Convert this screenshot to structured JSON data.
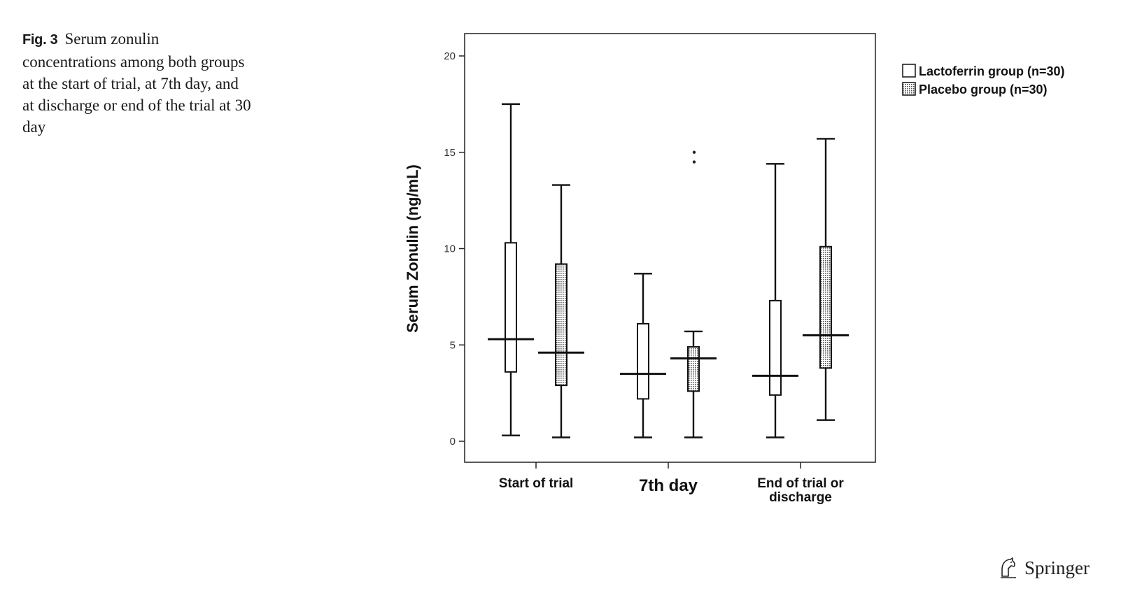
{
  "caption": {
    "label": "Fig. 3",
    "text": "Serum zonulin concentrations among both groups at the start of trial, at 7th day, and at discharge or end of the trial at 30 day"
  },
  "publisher": {
    "name": "Springer",
    "icon": "springer-horse-icon"
  },
  "chart_data": {
    "type": "box",
    "ylabel": "Serum Zonulin (ng/mL)",
    "xlabel": "",
    "ylim": [
      0,
      20
    ],
    "yticks": [
      0,
      5,
      10,
      15,
      20
    ],
    "categories": [
      "Start of trial",
      "7th day",
      "End of trial or discharge"
    ],
    "category_lines": [
      [
        "Start of trial"
      ],
      [
        "7th day"
      ],
      [
        "End of trial or",
        "discharge"
      ]
    ],
    "grid": false,
    "legend_position": "top-right, outside plot",
    "series": [
      {
        "name": "Lactoferrin group (n=30)",
        "fill": "white",
        "boxes": [
          {
            "min": 0.3,
            "q1": 3.6,
            "median": 5.3,
            "q3": 10.3,
            "max": 17.5,
            "outliers": []
          },
          {
            "min": 0.2,
            "q1": 2.2,
            "median": 3.5,
            "q3": 6.1,
            "max": 8.7,
            "outliers": []
          },
          {
            "min": 0.2,
            "q1": 2.4,
            "median": 3.4,
            "q3": 7.3,
            "max": 14.4,
            "outliers": []
          }
        ]
      },
      {
        "name": "Placebo group (n=30)",
        "fill": "dotted-hatch",
        "boxes": [
          {
            "min": 0.2,
            "q1": 2.9,
            "median": 4.6,
            "q3": 9.2,
            "max": 13.3,
            "outliers": []
          },
          {
            "min": 0.2,
            "q1": 2.6,
            "median": 4.3,
            "q3": 4.9,
            "max": 5.7,
            "outliers": [
              14.5,
              15.0
            ]
          },
          {
            "min": 1.1,
            "q1": 3.8,
            "median": 5.5,
            "q3": 10.1,
            "max": 15.7,
            "outliers": []
          }
        ]
      }
    ]
  }
}
